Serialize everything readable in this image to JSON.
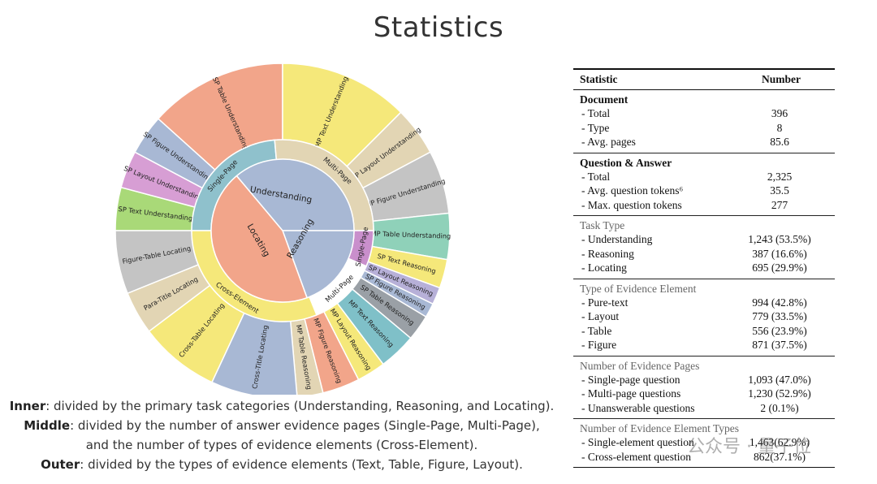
{
  "page": {
    "title": "Statistics"
  },
  "chart_data": {
    "type": "sunburst",
    "inner": [
      {
        "name": "Understanding",
        "color": "#a8b8d4"
      },
      {
        "name": "Reasoning",
        "color": "#a8b8d4"
      },
      {
        "name": "Locating",
        "color": "#f2a58a"
      }
    ],
    "middle": [
      {
        "name": "Single-Page",
        "parent": "Understanding",
        "color": "#8fc1cc"
      },
      {
        "name": "Multi-Page",
        "parent": "Understanding",
        "color": "#e2d5b4"
      },
      {
        "name": "Single-Page",
        "parent": "Reasoning",
        "color": "#c98fcc"
      },
      {
        "name": "Multi-Page",
        "parent": "Reasoning",
        "color": "#ffffff"
      },
      {
        "name": "Cross-Element",
        "parent": "Locating",
        "color": "#f5e87a"
      }
    ],
    "outer": [
      {
        "name": "SP Text Understanding",
        "color": "#a9d978"
      },
      {
        "name": "SP Layout Understanding",
        "color": "#d79ed4"
      },
      {
        "name": "SP Figure Understanding",
        "color": "#a8b8d4"
      },
      {
        "name": "SP Table Understanding",
        "color": "#f2a58a"
      },
      {
        "name": "MP Text Understanding",
        "color": "#f5e87a"
      },
      {
        "name": "MP Layout Understanding",
        "color": "#e2d5b4"
      },
      {
        "name": "MP Figure Understanding",
        "color": "#c4c4c4"
      },
      {
        "name": "MP Table Understanding",
        "color": "#8fd1b9"
      },
      {
        "name": "SP Text Reasoning",
        "color": "#f5e87a"
      },
      {
        "name": "SP Layout Reasoning",
        "color": "#b7b0d8"
      },
      {
        "name": "SP Figure Reasoning",
        "color": "#a8b8d4"
      },
      {
        "name": "SP Table Reasoning",
        "color": "#9aa0a6"
      },
      {
        "name": "MP Text Reasoning",
        "color": "#7fc0c8"
      },
      {
        "name": "MP Layout Reasoning",
        "color": "#f5e87a"
      },
      {
        "name": "MP Figure Reasoning",
        "color": "#f2a58a"
      },
      {
        "name": "MP Table Reasoning",
        "color": "#e2d5b4"
      },
      {
        "name": "Cross-Title Locating",
        "color": "#a8b8d4"
      },
      {
        "name": "Cross-Table Locating",
        "color": "#f5e87a"
      },
      {
        "name": "Para-Title Locating",
        "color": "#e2d5b4"
      },
      {
        "name": "Figure-Table Locating",
        "color": "#c4c4c4"
      }
    ]
  },
  "caption": {
    "line1_key": "Inner",
    "line1_text": ": divided by the primary task categories (Understanding, Reasoning, and Locating).",
    "line2_key": "Middle",
    "line2_text": ": divided by the number of answer evidence pages (Single-Page, Multi-Page),",
    "line3_text": "and the number of types of evidence elements (Cross-Element).",
    "line4_key": "Outer",
    "line4_text": ": divided by the types of evidence elements (Text, Table, Figure, Layout)."
  },
  "stats": {
    "header": {
      "col1": "Statistic",
      "col2": "Number"
    },
    "sections": [
      {
        "title": "Document",
        "rows": [
          {
            "k": "- Total",
            "v": "396"
          },
          {
            "k": "- Type",
            "v": "8"
          },
          {
            "k": "- Avg. pages",
            "v": "85.6"
          }
        ]
      },
      {
        "title": "Question & Answer",
        "rows": [
          {
            "k": "- Total",
            "v": "2,325"
          },
          {
            "k": "- Avg. question tokens⁶",
            "v": "35.5"
          },
          {
            "k": "- Max. question tokens",
            "v": "277"
          }
        ]
      },
      {
        "title": "Task Type",
        "rows": [
          {
            "k": "- Understanding",
            "v": "1,243 (53.5%)"
          },
          {
            "k": "- Reasoning",
            "v": "387 (16.6%)"
          },
          {
            "k": "- Locating",
            "v": "695 (29.9%)"
          }
        ]
      },
      {
        "title": "Type of Evidence Element",
        "rows": [
          {
            "k": "- Pure-text",
            "v": "994 (42.8%)"
          },
          {
            "k": "- Layout",
            "v": "779 (33.5%)"
          },
          {
            "k": "- Table",
            "v": "556 (23.9%)"
          },
          {
            "k": "- Figure",
            "v": "871 (37.5%)"
          }
        ]
      },
      {
        "title": "Number of Evidence Pages",
        "rows": [
          {
            "k": "- Single-page question",
            "v": "1,093 (47.0%)"
          },
          {
            "k": "- Multi-page questions",
            "v": "1,230 (52.9%)"
          },
          {
            "k": "- Unanswerable questions",
            "v": "2 (0.1%)"
          }
        ]
      },
      {
        "title": "Number of Evidence Element Types",
        "rows": [
          {
            "k": "- Single-element question",
            "v": "1,463(62.9%)"
          },
          {
            "k": "- Cross-element question",
            "v": "862(37.1%)"
          }
        ]
      }
    ]
  },
  "watermark": "公众号 · 量子位"
}
